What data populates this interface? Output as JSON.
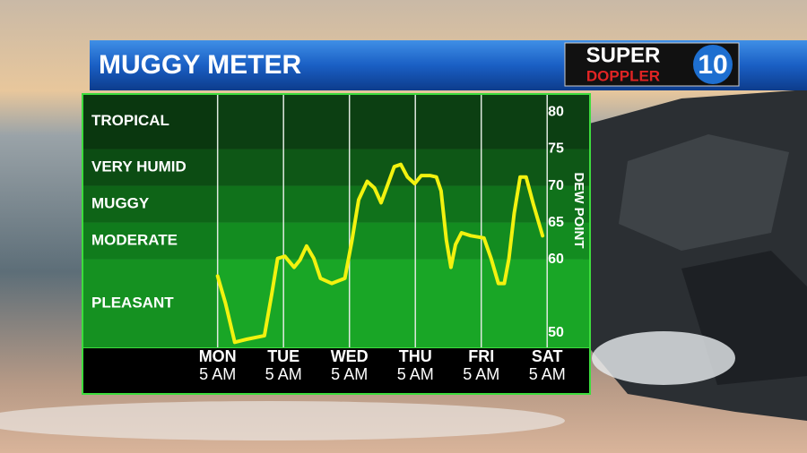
{
  "chart_data": {
    "type": "line",
    "title": "MUGGY METER",
    "y_axis_label": "DEW POINT",
    "xlim": [
      -2.05,
      5.65
    ],
    "xticks": [
      {
        "value": 0,
        "label": "MON"
      },
      {
        "value": 1,
        "label": "TUE"
      },
      {
        "value": 2,
        "label": "WED"
      },
      {
        "value": 3,
        "label": "THU"
      },
      {
        "value": 4,
        "label": "FRI"
      },
      {
        "value": 5,
        "label": "SAT"
      }
    ],
    "xtick_sublabels": [
      "5 AM",
      "5 AM",
      "5 AM",
      "5 AM",
      "5 AM",
      "5 AM"
    ],
    "ylim": [
      48,
      82.5
    ],
    "yticks": [
      80,
      75,
      70,
      65,
      60,
      50
    ],
    "zones": [
      {
        "name": "TROPICAL",
        "from": 75,
        "to": 82.5,
        "color": "#0c3f12"
      },
      {
        "name": "VERY HUMID",
        "from": 70,
        "to": 75,
        "color": "#0e5716"
      },
      {
        "name": "MUGGY",
        "from": 65,
        "to": 70,
        "color": "#10721b"
      },
      {
        "name": "MODERATE",
        "from": 60,
        "to": 65,
        "color": "#138c20"
      },
      {
        "name": "PLEASANT",
        "from": 48,
        "to": 60,
        "color": "#19a626"
      }
    ],
    "series": [
      {
        "name": "Dew point",
        "color": "#f2f20f",
        "x": [
          0,
          0.12,
          0.26,
          0.44,
          0.71,
          0.82,
          0.91,
          1.02,
          1.16,
          1.25,
          1.35,
          1.46,
          1.56,
          1.73,
          1.93,
          2.04,
          2.14,
          2.27,
          2.38,
          2.48,
          2.57,
          2.68,
          2.78,
          2.88,
          2.99,
          3.09,
          3.22,
          3.32,
          3.39,
          3.47,
          3.54,
          3.61,
          3.7,
          3.84,
          4.04,
          4.15,
          4.26,
          4.35,
          4.42,
          4.5,
          4.59,
          4.68,
          4.79,
          4.93
        ],
        "values": [
          57.7,
          54,
          48.7,
          49.1,
          49.6,
          55.2,
          60.1,
          60.4,
          58.9,
          59.9,
          61.8,
          60.1,
          57.4,
          56.7,
          57.4,
          62.6,
          68.1,
          70.6,
          69.7,
          67.7,
          69.9,
          72.6,
          72.9,
          71.2,
          70.3,
          71.4,
          71.4,
          71.2,
          69.3,
          62.6,
          58.9,
          62,
          63.6,
          63.2,
          62.9,
          60.1,
          56.7,
          56.7,
          60.1,
          66.3,
          71.2,
          71.2,
          67.5,
          63.2
        ]
      }
    ]
  },
  "logo": {
    "line1": "SUPER",
    "line2": "DOPPLER",
    "number": "10"
  }
}
